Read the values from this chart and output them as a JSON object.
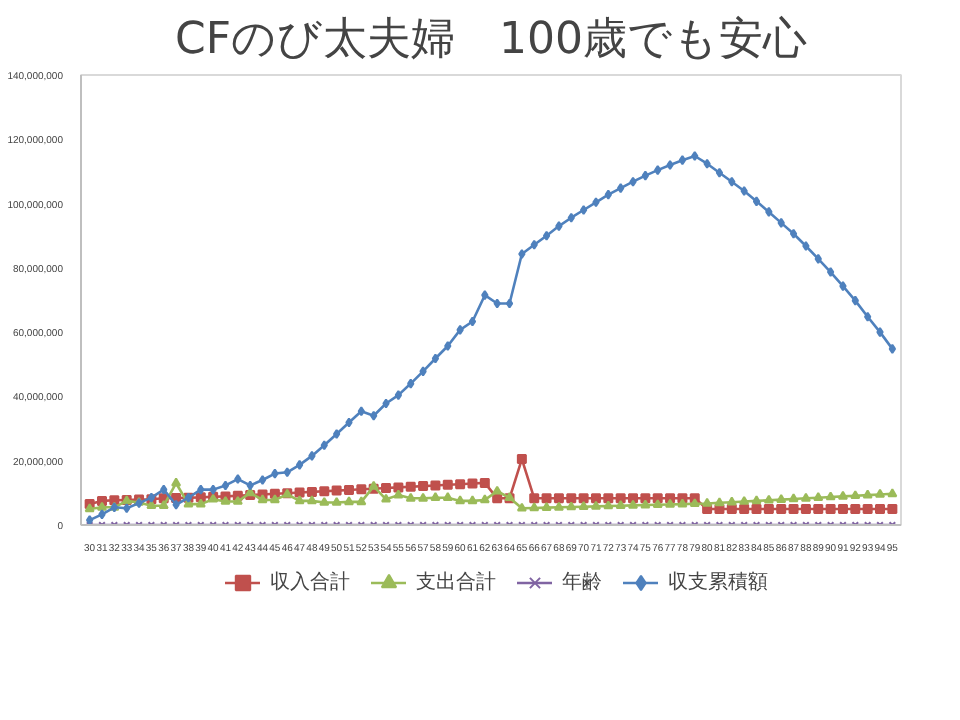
{
  "chart_data": {
    "type": "line",
    "title": "CFのび太夫婦　100歳でも安心",
    "categories": [
      "30",
      "31",
      "32",
      "33",
      "34",
      "35",
      "36",
      "37",
      "38",
      "39",
      "40",
      "41",
      "42",
      "43",
      "44",
      "45",
      "46",
      "47",
      "48",
      "49",
      "50",
      "51",
      "52",
      "53",
      "54",
      "55",
      "56",
      "57",
      "58",
      "59",
      "60",
      "61",
      "62",
      "63",
      "64",
      "65",
      "66",
      "67",
      "68",
      "69",
      "70",
      "71",
      "72",
      "73",
      "74",
      "75",
      "76",
      "77",
      "78",
      "79",
      "80",
      "81",
      "82",
      "83",
      "84",
      "85",
      "86",
      "87",
      "88",
      "89",
      "90",
      "91",
      "92",
      "93",
      "94",
      "95"
    ],
    "ylim": [
      0,
      140000000
    ],
    "yticks": [
      {
        "value": 0,
        "label": "0"
      },
      {
        "value": 20000000,
        "label": "20,000,000"
      },
      {
        "value": 40000000,
        "label": "40,000,000"
      },
      {
        "value": 60000000,
        "label": "60,000,000"
      },
      {
        "value": 80000000,
        "label": "80,000,000"
      },
      {
        "value": 100000000,
        "label": "100,000,000"
      },
      {
        "value": 120000000,
        "label": "120,000,000"
      },
      {
        "value": 140000000,
        "label": "140,000,000"
      }
    ],
    "grid": false,
    "legend": "bottom",
    "series": [
      {
        "name": "収入合計",
        "color": "#c0504d",
        "marker": "square",
        "values": [
          6500000,
          7500000,
          7700000,
          7800000,
          7900000,
          8000000,
          8300000,
          8400000,
          8500000,
          8600000,
          8800000,
          8900000,
          9100000,
          9300000,
          9500000,
          9700000,
          9900000,
          10100000,
          10300000,
          10500000,
          10700000,
          10900000,
          11100000,
          11300000,
          11500000,
          11700000,
          11900000,
          12100000,
          12300000,
          12500000,
          12700000,
          12900000,
          13100000,
          8300000,
          8300000,
          20500000,
          8300000,
          8300000,
          8300000,
          8300000,
          8300000,
          8300000,
          8300000,
          8300000,
          8300000,
          8300000,
          8300000,
          8300000,
          8300000,
          8300000,
          5000000,
          5000000,
          5000000,
          5000000,
          5000000,
          5000000,
          5000000,
          5000000,
          5000000,
          5000000,
          5000000,
          5000000,
          5000000,
          5000000,
          5000000,
          5000000
        ]
      },
      {
        "name": "支出合計",
        "color": "#9bbb59",
        "marker": "triangle",
        "values": [
          5000000,
          5500000,
          5500000,
          7500000,
          7000000,
          6000000,
          6000000,
          13000000,
          6500000,
          6500000,
          8000000,
          7300000,
          7300000,
          10000000,
          7800000,
          7800000,
          9500000,
          7500000,
          7500000,
          7000000,
          7000000,
          7200000,
          7200000,
          12000000,
          8000000,
          9300000,
          8300000,
          8300000,
          8500000,
          8500000,
          7500000,
          7500000,
          7800000,
          10500000,
          8500000,
          5200000,
          5300000,
          5400000,
          5500000,
          5600000,
          5700000,
          5800000,
          5900000,
          6000000,
          6100000,
          6200000,
          6300000,
          6400000,
          6500000,
          6600000,
          6700000,
          6900000,
          7100000,
          7300000,
          7500000,
          7700000,
          7900000,
          8100000,
          8300000,
          8500000,
          8700000,
          8900000,
          9100000,
          9300000,
          9500000,
          9700000
        ]
      },
      {
        "name": "年齢",
        "color": "#8064a2",
        "marker": "cross",
        "values": [
          0,
          0,
          0,
          0,
          0,
          0,
          0,
          0,
          0,
          0,
          0,
          0,
          0,
          0,
          0,
          0,
          0,
          0,
          0,
          0,
          0,
          0,
          0,
          0,
          0,
          0,
          0,
          0,
          0,
          0,
          0,
          0,
          0,
          0,
          0,
          0,
          0,
          0,
          0,
          0,
          0,
          0,
          0,
          0,
          0,
          0,
          0,
          0,
          0,
          0,
          0,
          0,
          0,
          0,
          0,
          0,
          0,
          0,
          0,
          0,
          0,
          0,
          0,
          0,
          0,
          0
        ]
      },
      {
        "name": "収支累積額",
        "color": "#4f81bd",
        "marker": "diamond",
        "values": [
          1500000,
          3300000,
          5500000,
          5200000,
          6800000,
          8500000,
          11000000,
          6300000,
          8500000,
          11000000,
          11000000,
          12300000,
          14300000,
          12300000,
          14000000,
          16000000,
          16400000,
          18700000,
          21500000,
          24800000,
          28300000,
          31900000,
          35400000,
          34000000,
          37800000,
          40400000,
          44000000,
          47800000,
          51800000,
          55700000,
          60700000,
          63300000,
          71500000,
          68900000,
          68900000,
          84300000,
          87200000,
          90000000,
          93000000,
          95600000,
          98000000,
          100400000,
          102800000,
          104800000,
          106800000,
          108700000,
          110400000,
          112000000,
          113500000,
          114800000,
          112400000,
          109600000,
          106800000,
          103900000,
          100700000,
          97400000,
          94000000,
          90600000,
          86800000,
          82800000,
          78700000,
          74300000,
          69800000,
          64800000,
          60000000,
          54800000
        ]
      }
    ]
  }
}
